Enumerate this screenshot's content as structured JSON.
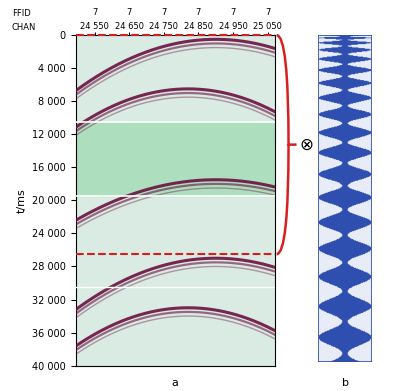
{
  "chart_data": {
    "type": "seismic_record",
    "ylabel": "t/ms",
    "ylim": [
      40000,
      0
    ],
    "yticks": [
      0,
      {
        "value": 4000,
        "label": "4 000"
      },
      {
        "value": 8000,
        "label": "8 000"
      },
      {
        "value": 12000,
        "label": "12 000"
      },
      {
        "value": 16000,
        "label": "16 000"
      },
      {
        "value": 20000,
        "label": "20 000"
      },
      {
        "value": 24000,
        "label": "24 000"
      },
      {
        "value": 28000,
        "label": "28 000"
      },
      {
        "value": 32000,
        "label": "32 000"
      },
      {
        "value": 36000,
        "label": "36 000"
      },
      {
        "value": 40000,
        "label": "40 000"
      }
    ],
    "xlim": [
      24495,
      25070
    ],
    "chan_label": "CHAN",
    "xticks": [
      {
        "value": 24550,
        "label": "24 550"
      },
      {
        "value": 24650,
        "label": "24 650"
      },
      {
        "value": 24750,
        "label": "24 750"
      },
      {
        "value": 24850,
        "label": "24 850"
      },
      {
        "value": 24950,
        "label": "24 950"
      },
      {
        "value": 25050,
        "label": "25 050"
      }
    ],
    "ffid_label": "FFID",
    "ffid": [
      7,
      7,
      7,
      7,
      7,
      7
    ],
    "events": [
      {
        "t0": 500,
        "x0": 24900,
        "k": 0.038
      },
      {
        "t0": 6500,
        "x0": 24820,
        "k": 0.044
      },
      {
        "t0": 17500,
        "x0": 24900,
        "k": 0.03
      },
      {
        "t0": 27000,
        "x0": 24900,
        "k": 0.038
      },
      {
        "t0": 33000,
        "x0": 24820,
        "k": 0.044
      }
    ],
    "green_band": [
      10500,
      19500
    ],
    "white_lines": [
      30500
    ],
    "red_dashed": [
      0,
      26500
    ],
    "operator": "⊗",
    "panel_labels": [
      "a",
      "b"
    ]
  }
}
